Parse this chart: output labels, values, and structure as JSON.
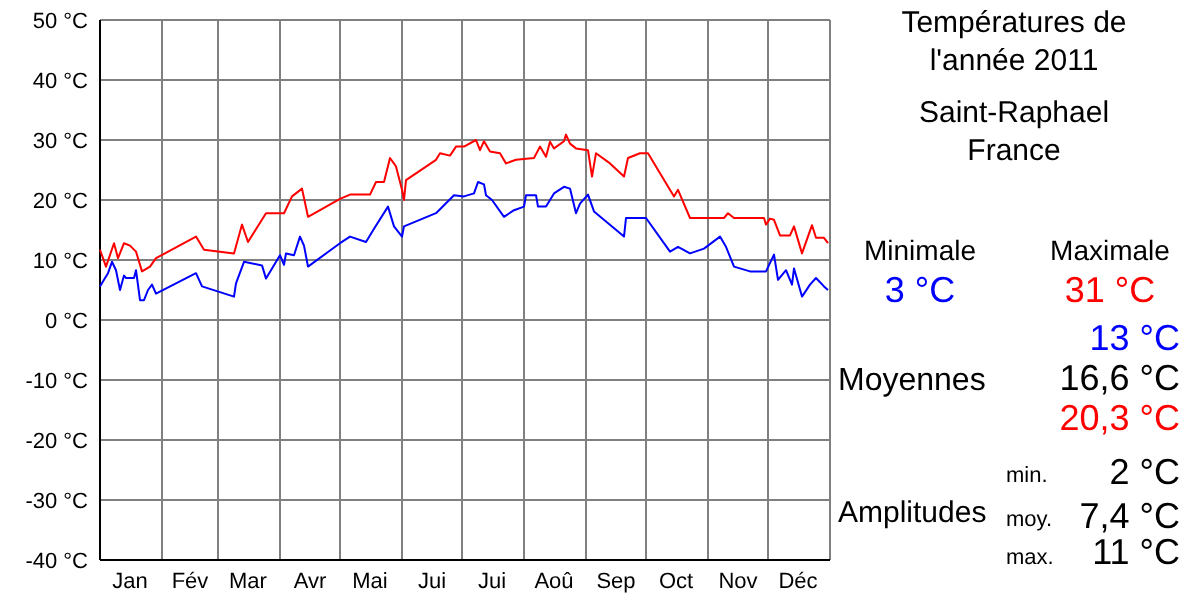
{
  "chart_data": {
    "type": "line",
    "title": "Températures de l'année 2011",
    "subtitle": "Saint-Raphael France",
    "xlim": [
      "2011-01-01",
      "2012-01-01"
    ],
    "ylim": [
      -40,
      50
    ],
    "xticks": [
      {
        "value": "2011-01-01",
        "label": null
      },
      {
        "value": "2011-01-16",
        "label": "Jan"
      },
      {
        "value": "2011-02-01",
        "label": null
      },
      {
        "value": "2011-02-15",
        "label": "Fév"
      },
      {
        "value": "2011-03-01",
        "label": null
      },
      {
        "value": "2011-03-16",
        "label": "Mar"
      },
      {
        "value": "2011-04-01",
        "label": null
      },
      {
        "value": "2011-04-16",
        "label": "Avr"
      },
      {
        "value": "2011-05-01",
        "label": null
      },
      {
        "value": "2011-05-16",
        "label": "Mai"
      },
      {
        "value": "2011-06-01",
        "label": null
      },
      {
        "value": "2011-06-16",
        "label": "Jui"
      },
      {
        "value": "2011-07-01",
        "label": null
      },
      {
        "value": "2011-07-16",
        "label": "Jui"
      },
      {
        "value": "2011-08-01",
        "label": null
      },
      {
        "value": "2011-08-16",
        "label": "Aoû"
      },
      {
        "value": "2011-09-01",
        "label": null
      },
      {
        "value": "2011-09-16",
        "label": "Sep"
      },
      {
        "value": "2011-10-01",
        "label": null
      },
      {
        "value": "2011-10-16",
        "label": "Oct"
      },
      {
        "value": "2011-11-01",
        "label": null
      },
      {
        "value": "2011-11-16",
        "label": "Nov"
      },
      {
        "value": "2011-12-01",
        "label": null
      },
      {
        "value": "2011-12-16",
        "label": "Déc"
      },
      {
        "value": "2012-01-01",
        "label": null
      }
    ],
    "yticks": [
      {
        "value": -40,
        "label": "-40 °C"
      },
      {
        "value": -30,
        "label": "-30 °C"
      },
      {
        "value": -20,
        "label": "-20 °C"
      },
      {
        "value": -10,
        "label": "-10 °C"
      },
      {
        "value": 0,
        "label": "0 °C"
      },
      {
        "value": 10,
        "label": "10 °C"
      },
      {
        "value": 20,
        "label": "20 °C"
      },
      {
        "value": 30,
        "label": "30 °C"
      },
      {
        "value": 40,
        "label": "40 °C"
      },
      {
        "value": 50,
        "label": "50 °C"
      }
    ],
    "grid": true,
    "line_style": "solid",
    "series": [
      {
        "color": "#0000ff",
        "x": [
          "2011-01-01",
          "2011-01-03",
          "2011-01-05",
          "2011-01-07",
          "2011-01-09",
          "2011-01-11",
          "2011-01-13",
          "2011-01-14",
          "2011-01-18",
          "2011-01-19",
          "2011-01-21",
          "2011-01-23",
          "2011-01-25",
          "2011-01-27",
          "2011-01-29",
          "2011-02-18",
          "2011-02-21",
          "2011-03-09",
          "2011-03-10",
          "2011-03-14",
          "2011-03-23",
          "2011-03-25",
          "2011-04-01",
          "2011-04-03",
          "2011-04-04",
          "2011-04-08",
          "2011-04-11",
          "2011-04-13",
          "2011-04-15",
          "2011-05-01",
          "2011-05-06",
          "2011-05-14",
          "2011-05-18",
          "2011-05-25",
          "2011-05-28",
          "2011-06-01",
          "2011-06-02",
          "2011-06-18",
          "2011-06-27",
          "2011-07-02",
          "2011-07-07",
          "2011-07-09",
          "2011-07-12",
          "2011-07-13",
          "2011-07-16",
          "2011-07-22",
          "2011-07-27",
          "2011-08-01",
          "2011-08-02",
          "2011-08-07",
          "2011-08-08",
          "2011-08-12",
          "2011-08-16",
          "2011-08-21",
          "2011-08-24",
          "2011-08-27",
          "2011-08-29",
          "2011-09-02",
          "2011-09-05",
          "2011-09-20",
          "2011-09-21",
          "2011-10-01",
          "2011-10-13",
          "2011-10-17",
          "2011-10-23",
          "2011-10-30",
          "2011-11-07",
          "2011-11-10",
          "2011-11-14",
          "2011-11-22",
          "2011-11-30",
          "2011-12-04",
          "2011-12-06",
          "2011-12-10",
          "2011-12-13",
          "2011-12-14",
          "2011-12-18",
          "2011-12-22",
          "2011-12-25",
          "2011-12-29",
          "2011-12-31"
        ],
        "values": [
          5.6,
          6.7,
          7.8,
          9.7,
          8.3,
          5,
          7.4,
          7,
          7,
          8.3,
          3.3,
          3.3,
          5,
          5.9,
          4.4,
          7.8,
          5.6,
          3.9,
          6.1,
          9.7,
          9.1,
          6.9,
          10.8,
          9.2,
          11.1,
          10.8,
          13.9,
          12.4,
          8.9,
          12.8,
          13.9,
          13,
          15.2,
          18.9,
          15.6,
          13.9,
          15.6,
          17.8,
          20.8,
          20.6,
          21.1,
          23,
          22.6,
          20.8,
          20,
          17.2,
          18.3,
          18.9,
          20.8,
          20.8,
          18.9,
          18.9,
          21.1,
          22.2,
          21.9,
          17.8,
          19.4,
          20.9,
          18.1,
          13.9,
          17,
          17,
          11.4,
          12.2,
          11.1,
          11.9,
          13.9,
          12.2,
          8.9,
          8.1,
          8.1,
          10.9,
          6.7,
          8.3,
          5.9,
          8.6,
          3.9,
          5.9,
          7,
          5.6,
          5
        ]
      },
      {
        "color": "#ff0000",
        "x": [
          "2011-01-01",
          "2011-01-04",
          "2011-01-08",
          "2011-01-10",
          "2011-01-13",
          "2011-01-16",
          "2011-01-19",
          "2011-01-22",
          "2011-01-26",
          "2011-01-29",
          "2011-02-18",
          "2011-02-22",
          "2011-03-09",
          "2011-03-13",
          "2011-03-16",
          "2011-03-25",
          "2011-04-03",
          "2011-04-07",
          "2011-04-12",
          "2011-04-15",
          "2011-05-01",
          "2011-05-06",
          "2011-05-16",
          "2011-05-19",
          "2011-05-23",
          "2011-05-26",
          "2011-05-29",
          "2011-06-01",
          "2011-06-02",
          "2011-06-03",
          "2011-06-18",
          "2011-06-20",
          "2011-06-25",
          "2011-06-28",
          "2011-07-02",
          "2011-07-08",
          "2011-07-10",
          "2011-07-12",
          "2011-07-15",
          "2011-07-20",
          "2011-07-23",
          "2011-07-28",
          "2011-08-06",
          "2011-08-09",
          "2011-08-12",
          "2011-08-14",
          "2011-08-16",
          "2011-08-21",
          "2011-08-22",
          "2011-08-24",
          "2011-08-27",
          "2011-09-02",
          "2011-09-04",
          "2011-09-06",
          "2011-09-13",
          "2011-09-20",
          "2011-09-22",
          "2011-09-28",
          "2011-10-02",
          "2011-10-15",
          "2011-10-17",
          "2011-10-23",
          "2011-11-09",
          "2011-11-11",
          "2011-11-14",
          "2011-11-29",
          "2011-11-30",
          "2011-12-02",
          "2011-12-04",
          "2011-12-07",
          "2011-12-12",
          "2011-12-14",
          "2011-12-18",
          "2011-12-23",
          "2011-12-25",
          "2011-12-29",
          "2011-12-31"
        ],
        "values": [
          11.7,
          8.9,
          12.8,
          10.3,
          12.8,
          12.4,
          11.4,
          8.1,
          8.9,
          10.3,
          13.9,
          11.7,
          11.1,
          15.9,
          13,
          17.8,
          17.8,
          20.6,
          21.9,
          17.2,
          20.2,
          20.9,
          20.9,
          23,
          23,
          27,
          25.6,
          21.7,
          20,
          23.3,
          26.7,
          27.8,
          27.4,
          28.9,
          28.9,
          30,
          28.3,
          29.8,
          28.1,
          27.8,
          26.1,
          26.7,
          27,
          28.9,
          27.2,
          29.7,
          28.6,
          29.8,
          30.9,
          29.4,
          28.6,
          28.3,
          23.9,
          27.8,
          26.1,
          23.9,
          27,
          27.8,
          27.8,
          20.6,
          21.7,
          17,
          17,
          17.8,
          17,
          17,
          15.9,
          16.9,
          16.7,
          14.1,
          14.1,
          15.6,
          11.1,
          15.8,
          13.7,
          13.7,
          12.8
        ]
      }
    ],
    "annotations": [
      "Minimale",
      "Maximale",
      "3 °C",
      "31 °C",
      "13 °C",
      "Moyennes",
      "16,6 °C",
      "20,3 °C",
      "Amplitudes",
      "min.",
      "2 °C",
      "moy.",
      "7,4 °C",
      "max.",
      "11 °C"
    ]
  }
}
